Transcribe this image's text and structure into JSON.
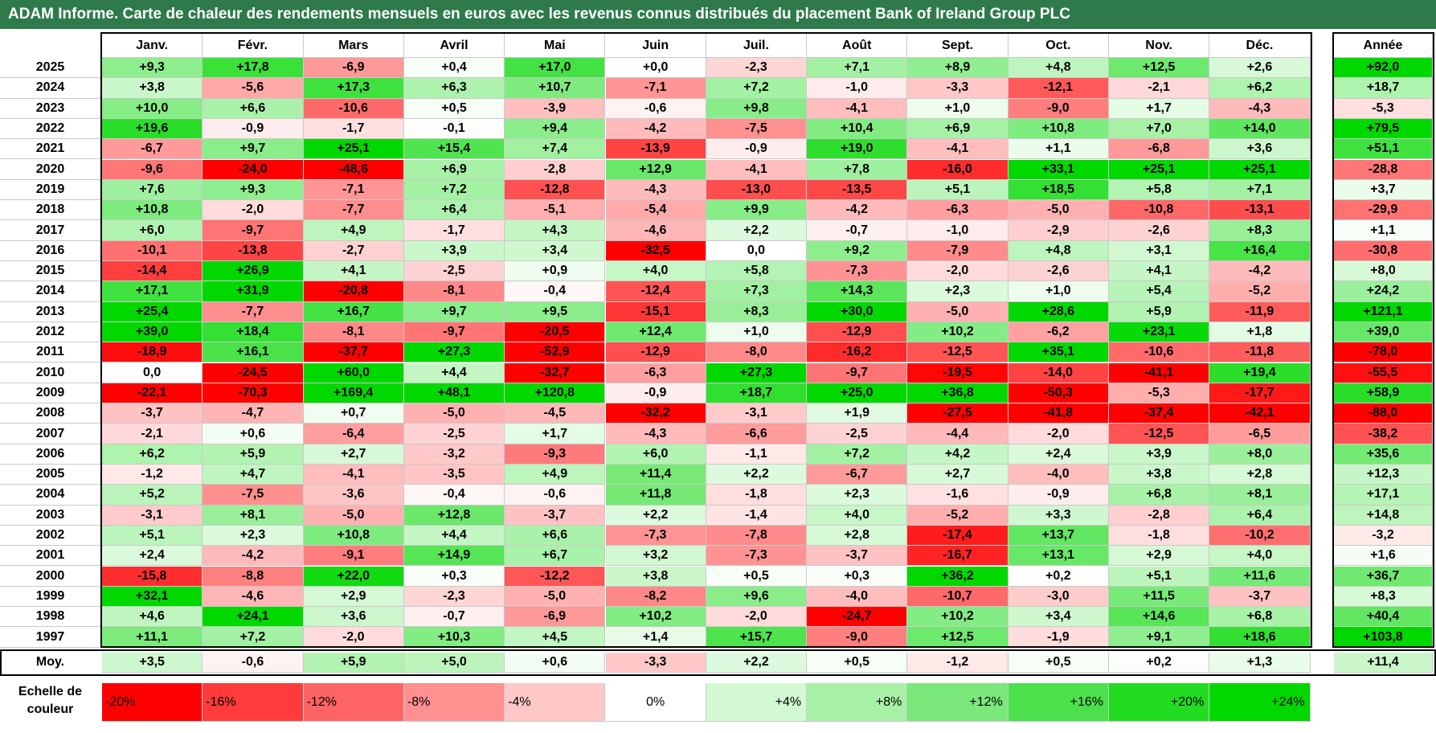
{
  "title": "ADAM Informe. Carte de chaleur des rendements mensuels en euros avec les revenus connus distribués du placement Bank of Ireland Group PLC",
  "chart_data": {
    "type": "heatmap",
    "months": [
      "Janv.",
      "Févr.",
      "Mars",
      "Avril",
      "Mai",
      "Juin",
      "Juil.",
      "Août",
      "Sept.",
      "Oct.",
      "Nov.",
      "Déc."
    ],
    "year_header": "Année",
    "rows": [
      {
        "label": "2025",
        "values": [
          "+9,3",
          "+17,8",
          "-6,9",
          "+0,4",
          "+17,0",
          "+0,0",
          "-2,3",
          "+7,1",
          "+8,9",
          "+4,8",
          "+12,5",
          "+2,6"
        ],
        "year": "+92,0"
      },
      {
        "label": "2024",
        "values": [
          "+3,8",
          "-5,6",
          "+17,3",
          "+6,3",
          "+10,7",
          "-7,1",
          "+7,2",
          "-1,0",
          "-3,3",
          "-12,1",
          "-2,1",
          "+6,2"
        ],
        "year": "+18,7"
      },
      {
        "label": "2023",
        "values": [
          "+10,0",
          "+6,6",
          "-10,6",
          "+0,5",
          "-3,9",
          "-0,6",
          "+9,8",
          "-4,1",
          "+1,0",
          "-9,0",
          "+1,7",
          "-4,3"
        ],
        "year": "-5,3"
      },
      {
        "label": "2022",
        "values": [
          "+19,6",
          "-0,9",
          "-1,7",
          "-0,1",
          "+9,4",
          "-4,2",
          "-7,5",
          "+10,4",
          "+6,9",
          "+10,8",
          "+7,0",
          "+14,0"
        ],
        "year": "+79,5"
      },
      {
        "label": "2021",
        "values": [
          "-6,7",
          "+9,7",
          "+25,1",
          "+15,4",
          "+7,4",
          "-13,9",
          "-0,9",
          "+19,0",
          "-4,1",
          "+1,1",
          "-6,8",
          "+3,6"
        ],
        "year": "+51,1"
      },
      {
        "label": "2020",
        "values": [
          "-9,6",
          "-24,0",
          "-48,6",
          "+6,9",
          "-2,8",
          "+12,9",
          "-4,1",
          "+7,8",
          "-16,0",
          "+33,1",
          "+25,1",
          "+25,1"
        ],
        "year": "-28,8"
      },
      {
        "label": "2019",
        "values": [
          "+7,6",
          "+9,3",
          "-7,1",
          "+7,2",
          "-12,8",
          "-4,3",
          "-13,0",
          "-13,5",
          "+5,1",
          "+18,5",
          "+5,8",
          "+7,1"
        ],
        "year": "+3,7"
      },
      {
        "label": "2018",
        "values": [
          "+10,8",
          "-2,0",
          "-7,7",
          "+6,4",
          "-5,1",
          "-5,4",
          "+9,9",
          "-4,2",
          "-6,3",
          "-5,0",
          "-10,8",
          "-13,1"
        ],
        "year": "-29,9"
      },
      {
        "label": "2017",
        "values": [
          "+6,0",
          "-9,7",
          "+4,9",
          "-1,7",
          "+4,3",
          "-4,6",
          "+2,2",
          "-0,7",
          "-1,0",
          "-2,9",
          "-2,6",
          "+8,3"
        ],
        "year": "+1,1"
      },
      {
        "label": "2016",
        "values": [
          "-10,1",
          "-13,8",
          "-2,7",
          "+3,9",
          "+3,4",
          "-32,5",
          "0,0",
          "+9,2",
          "-7,9",
          "+4,8",
          "+3,1",
          "+16,4"
        ],
        "year": "-30,8"
      },
      {
        "label": "2015",
        "values": [
          "-14,4",
          "+26,9",
          "+4,1",
          "-2,5",
          "+0,9",
          "+4,0",
          "+5,8",
          "-7,3",
          "-2,0",
          "-2,6",
          "+4,1",
          "-4,2"
        ],
        "year": "+8,0"
      },
      {
        "label": "2014",
        "values": [
          "+17,1",
          "+31,9",
          "-20,8",
          "-8,1",
          "-0,4",
          "-12,4",
          "+7,3",
          "+14,3",
          "+2,3",
          "+1,0",
          "+5,4",
          "-5,2"
        ],
        "year": "+24,2"
      },
      {
        "label": "2013",
        "values": [
          "+25,4",
          "-7,7",
          "+16,7",
          "+9,7",
          "+9,5",
          "-15,1",
          "+8,3",
          "+30,0",
          "-5,0",
          "+28,6",
          "+5,9",
          "-11,9"
        ],
        "year": "+121,1"
      },
      {
        "label": "2012",
        "values": [
          "+39,0",
          "+18,4",
          "-8,1",
          "-9,7",
          "-20,5",
          "+12,4",
          "+1,0",
          "-12,9",
          "+10,2",
          "-6,2",
          "+23,1",
          "+1,8"
        ],
        "year": "+39,0"
      },
      {
        "label": "2011",
        "values": [
          "-18,9",
          "+16,1",
          "-37,7",
          "+27,3",
          "-52,9",
          "-12,9",
          "-8,0",
          "-16,2",
          "-12,5",
          "+35,1",
          "-10,6",
          "-11,8"
        ],
        "year": "-78,0"
      },
      {
        "label": "2010",
        "values": [
          "0,0",
          "-24,5",
          "+60,0",
          "+4,4",
          "-32,7",
          "-6,3",
          "+27,3",
          "-9,7",
          "-19,5",
          "-14,0",
          "-41,1",
          "+19,4"
        ],
        "year": "-55,5"
      },
      {
        "label": "2009",
        "values": [
          "-22,1",
          "-70,3",
          "+169,4",
          "+48,1",
          "+120,8",
          "-0,9",
          "+18,7",
          "+25,0",
          "+36,8",
          "-50,3",
          "-5,3",
          "-17,7"
        ],
        "year": "+58,9"
      },
      {
        "label": "2008",
        "values": [
          "-3,7",
          "-4,7",
          "+0,7",
          "-5,0",
          "-4,5",
          "-32,2",
          "-3,1",
          "+1,9",
          "-27,5",
          "-41,8",
          "-37,4",
          "-42,1"
        ],
        "year": "-88,0"
      },
      {
        "label": "2007",
        "values": [
          "-2,1",
          "+0,6",
          "-6,4",
          "-2,5",
          "+1,7",
          "-4,3",
          "-6,6",
          "-2,5",
          "-4,4",
          "-2,0",
          "-12,5",
          "-6,5"
        ],
        "year": "-38,2"
      },
      {
        "label": "2006",
        "values": [
          "+6,2",
          "+5,9",
          "+2,7",
          "-3,2",
          "-9,3",
          "+6,0",
          "-1,1",
          "+7,2",
          "+4,2",
          "+2,4",
          "+3,9",
          "+8,0"
        ],
        "year": "+35,6"
      },
      {
        "label": "2005",
        "values": [
          "-1,2",
          "+4,7",
          "-4,1",
          "-3,5",
          "+4,9",
          "+11,4",
          "+2,2",
          "-6,7",
          "+2,7",
          "-4,0",
          "+3,8",
          "+2,8"
        ],
        "year": "+12,3"
      },
      {
        "label": "2004",
        "values": [
          "+5,2",
          "-7,5",
          "-3,6",
          "-0,4",
          "-0,6",
          "+11,8",
          "-1,8",
          "+2,3",
          "-1,6",
          "-0,9",
          "+6,8",
          "+8,1"
        ],
        "year": "+17,1"
      },
      {
        "label": "2003",
        "values": [
          "-3,1",
          "+8,1",
          "-5,0",
          "+12,8",
          "-3,7",
          "+2,2",
          "-1,4",
          "+4,0",
          "-5,2",
          "+3,3",
          "-2,8",
          "+6,4"
        ],
        "year": "+14,8"
      },
      {
        "label": "2002",
        "values": [
          "+5,1",
          "+2,3",
          "+10,8",
          "+4,4",
          "+6,6",
          "-7,3",
          "-7,8",
          "+2,8",
          "-17,4",
          "+13,7",
          "-1,8",
          "-10,2"
        ],
        "year": "-3,2"
      },
      {
        "label": "2001",
        "values": [
          "+2,4",
          "-4,2",
          "-9,1",
          "+14,9",
          "+6,7",
          "+3,2",
          "-7,3",
          "-3,7",
          "-16,7",
          "+13,1",
          "+2,9",
          "+4,0"
        ],
        "year": "+1,6"
      },
      {
        "label": "2000",
        "values": [
          "-15,8",
          "-8,8",
          "+22,0",
          "+0,3",
          "-12,2",
          "+3,8",
          "+0,5",
          "+0,3",
          "+36,2",
          "+0,2",
          "+5,1",
          "+11,6"
        ],
        "year": "+36,7"
      },
      {
        "label": "1999",
        "values": [
          "+32,1",
          "-4,6",
          "+2,9",
          "-2,3",
          "-5,0",
          "-8,2",
          "+9,6",
          "-4,0",
          "-10,7",
          "-3,0",
          "+11,5",
          "-3,7"
        ],
        "year": "+8,3"
      },
      {
        "label": "1998",
        "values": [
          "+4,6",
          "+24,1",
          "+3,6",
          "-0,7",
          "-6,9",
          "+10,2",
          "-2,0",
          "-24,7",
          "+10,2",
          "+3,4",
          "+14,6",
          "+6,8"
        ],
        "year": "+40,4"
      },
      {
        "label": "1997",
        "values": [
          "+11,1",
          "+7,2",
          "-2,0",
          "+10,3",
          "+4,5",
          "+1,4",
          "+15,7",
          "-9,0",
          "+12,5",
          "-1,9",
          "+9,1",
          "+18,6"
        ],
        "year": "+103,8"
      }
    ],
    "average": {
      "label": "Moy.",
      "values": [
        "+3,5",
        "-0,6",
        "+5,9",
        "+5,0",
        "+0,6",
        "-3,3",
        "+2,2",
        "+0,5",
        "-1,2",
        "+0,5",
        "+0,2",
        "+1,3"
      ],
      "year": "+11,4"
    },
    "color_scale": {
      "label": "Echelle de couleur",
      "steps": [
        "-20%",
        "-16%",
        "-12%",
        "-8%",
        "-4%",
        "0%",
        "+4%",
        "+8%",
        "+12%",
        "+16%",
        "+20%",
        "+24%"
      ],
      "colors": [
        "#ff0000",
        "#ff3b3b",
        "#ff6464",
        "#ff9090",
        "#ffc8c8",
        "#ffffff",
        "#d2f9d2",
        "#a7f1a7",
        "#7ae87a",
        "#4ce14c",
        "#22dc22",
        "#00d800"
      ]
    }
  }
}
